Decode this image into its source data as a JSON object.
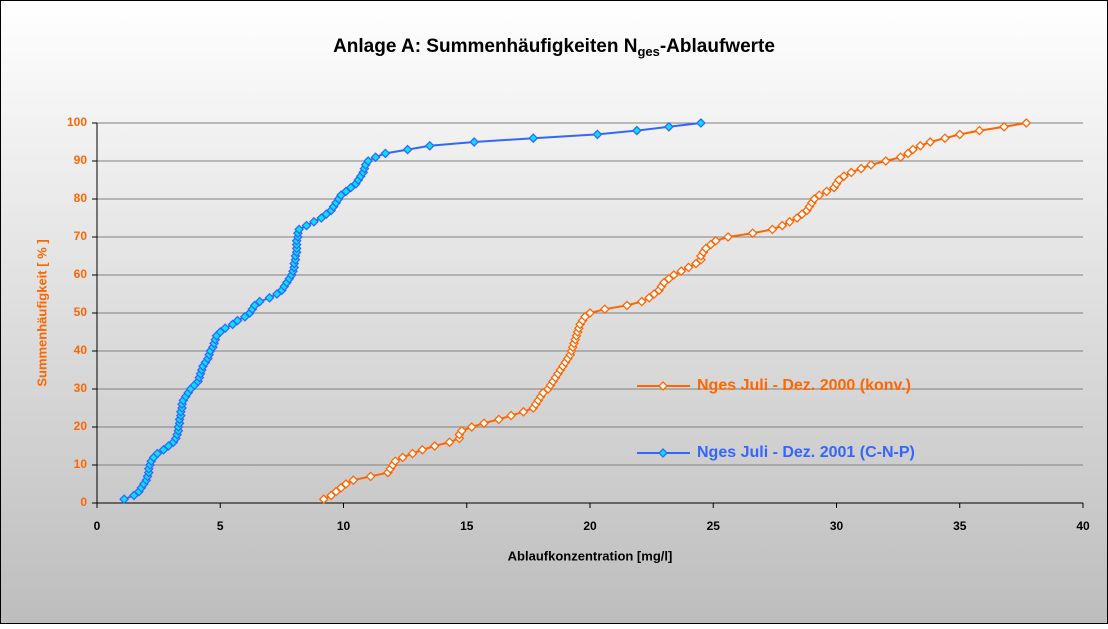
{
  "chart_data": {
    "type": "line",
    "title_parts": [
      "Anlage A: Summenhäufigkeiten N",
      "ges",
      "-Ablaufwerte"
    ],
    "x_label": "Ablaufkonzentration [mg/l]",
    "y_label": "Summenhäufigkeit  [ % ]",
    "xlim": [
      0,
      40
    ],
    "xticks": [
      0,
      5,
      10,
      15,
      20,
      25,
      30,
      35,
      40
    ],
    "ylim": [
      0,
      100
    ],
    "yticks": [
      0,
      10,
      20,
      30,
      40,
      50,
      60,
      70,
      80,
      90,
      100
    ],
    "grid": true,
    "legend": "right",
    "series": [
      {
        "name": "Nges Juli - Dez. 2000 (konv.)",
        "color": "#ff6600",
        "marker_fill": "#ffffff",
        "x": [
          9.2,
          9.5,
          9.7,
          9.9,
          10.1,
          10.4,
          11.1,
          11.8,
          11.9,
          12.0,
          12.1,
          12.4,
          12.8,
          13.2,
          13.7,
          14.3,
          14.7,
          14.7,
          14.8,
          15.2,
          15.7,
          16.3,
          16.8,
          17.3,
          17.7,
          17.8,
          17.9,
          18.0,
          18.1,
          18.3,
          18.4,
          18.5,
          18.6,
          18.7,
          18.8,
          18.9,
          19.0,
          19.1,
          19.2,
          19.25,
          19.3,
          19.35,
          19.4,
          19.45,
          19.5,
          19.55,
          19.6,
          19.7,
          19.8,
          20.0,
          20.6,
          21.5,
          22.1,
          22.4,
          22.6,
          22.8,
          22.9,
          23.0,
          23.2,
          23.4,
          23.7,
          24.0,
          24.3,
          24.5,
          24.5,
          24.6,
          24.7,
          24.9,
          25.1,
          25.6,
          26.6,
          27.4,
          27.8,
          28.1,
          28.4,
          28.6,
          28.8,
          28.9,
          29.0,
          29.1,
          29.3,
          29.6,
          29.9,
          30.0,
          30.1,
          30.3,
          30.6,
          31.0,
          31.4,
          32.0,
          32.6,
          32.9,
          33.1,
          33.4,
          33.8,
          34.4,
          35.0,
          35.8,
          36.8,
          37.7
        ],
        "values": [
          1,
          2,
          3,
          4,
          5,
          6,
          7,
          8,
          9,
          10,
          11,
          12,
          13,
          14,
          15,
          16,
          17,
          18,
          19,
          20,
          21,
          22,
          23,
          24,
          25,
          26,
          27,
          28,
          29,
          30,
          31,
          32,
          33,
          34,
          35,
          36,
          37,
          38,
          39,
          40,
          41,
          42,
          43,
          44,
          45,
          46,
          47,
          48,
          49,
          50,
          51,
          52,
          53,
          54,
          55,
          56,
          57,
          58,
          59,
          60,
          61,
          62,
          63,
          64,
          65,
          66,
          67,
          68,
          69,
          70,
          71,
          72,
          73,
          74,
          75,
          76,
          77,
          78,
          79,
          80,
          81,
          82,
          83,
          84,
          85,
          86,
          87,
          88,
          89,
          90,
          91,
          92,
          93,
          94,
          95,
          96,
          97,
          98,
          99,
          100
        ]
      },
      {
        "name": "Nges Juli - Dez. 2001 (C-N-P)",
        "color": "#3366ff",
        "marker_fill": "#00e5ff",
        "x": [
          1.1,
          1.5,
          1.7,
          1.8,
          1.9,
          2.0,
          2.05,
          2.1,
          2.1,
          2.15,
          2.2,
          2.3,
          2.45,
          2.7,
          2.9,
          3.1,
          3.2,
          3.25,
          3.3,
          3.3,
          3.35,
          3.35,
          3.4,
          3.4,
          3.45,
          3.45,
          3.5,
          3.6,
          3.7,
          3.8,
          3.95,
          4.1,
          4.15,
          4.2,
          4.25,
          4.3,
          4.4,
          4.5,
          4.55,
          4.6,
          4.7,
          4.75,
          4.8,
          4.85,
          5.0,
          5.2,
          5.5,
          5.7,
          6.0,
          6.2,
          6.3,
          6.4,
          6.6,
          7.0,
          7.3,
          7.5,
          7.6,
          7.7,
          7.8,
          7.9,
          7.95,
          8.0,
          8.0,
          8.05,
          8.05,
          8.1,
          8.1,
          8.1,
          8.1,
          8.15,
          8.15,
          8.2,
          8.5,
          8.8,
          9.1,
          9.3,
          9.5,
          9.6,
          9.7,
          9.8,
          9.9,
          10.1,
          10.3,
          10.5,
          10.6,
          10.7,
          10.8,
          10.85,
          10.9,
          11.0,
          11.3,
          11.7,
          12.6,
          13.5,
          15.3,
          17.7,
          20.3,
          21.9,
          23.2,
          24.5
        ],
        "values": [
          1,
          2,
          3,
          4,
          5,
          6,
          7,
          8,
          9,
          10,
          11,
          12,
          13,
          14,
          15,
          16,
          17,
          18,
          19,
          20,
          21,
          22,
          23,
          24,
          25,
          26,
          27,
          28,
          29,
          30,
          31,
          32,
          33,
          34,
          35,
          36,
          37,
          38,
          39,
          40,
          41,
          42,
          43,
          44,
          45,
          46,
          47,
          48,
          49,
          50,
          51,
          52,
          53,
          54,
          55,
          56,
          57,
          58,
          59,
          60,
          61,
          62,
          63,
          64,
          65,
          66,
          67,
          68,
          69,
          70,
          71,
          72,
          73,
          74,
          75,
          76,
          77,
          78,
          79,
          80,
          81,
          82,
          83,
          84,
          85,
          86,
          87,
          88,
          89,
          90,
          91,
          92,
          93,
          94,
          95,
          96,
          97,
          98,
          99,
          100
        ]
      }
    ]
  }
}
